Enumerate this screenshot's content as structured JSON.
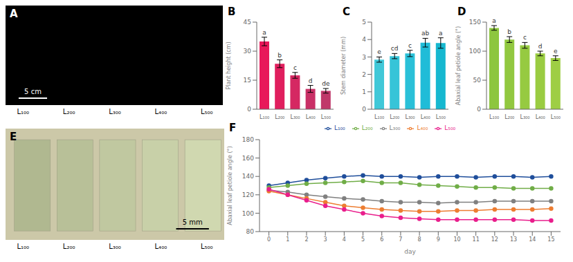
{
  "chart_data": [
    {
      "type": "image",
      "title": "A",
      "categories": [
        "L₁₀₀",
        "L₂₀₀",
        "L₃₀₀",
        "L₄₀₀",
        "L₅₀₀"
      ],
      "annotations": [
        "5 cm"
      ],
      "color": "#000000"
    },
    {
      "type": "bar",
      "title": "B",
      "categories": [
        "L₁₀₀",
        "L₂₀₀",
        "L₃₀₀",
        "L₄₀₀",
        "L₅₀₀"
      ],
      "values": [
        35.0,
        23.5,
        17.5,
        10.5,
        9.5
      ],
      "errors": [
        2.2,
        2.0,
        1.5,
        1.8,
        1.2
      ],
      "annotations": [
        "a",
        "b",
        "c",
        "d",
        "de"
      ],
      "colors": [
        "#e8185a",
        "#e01f5e",
        "#d52862",
        "#c93066",
        "#c0386a"
      ],
      "ylabel": "Plant height (cm)",
      "ylim": [
        0,
        45
      ],
      "yticks": [
        0,
        15,
        30,
        45
      ]
    },
    {
      "type": "bar",
      "title": "C",
      "categories": [
        "L₁₀₀",
        "L₂₀₀",
        "L₃₀₀",
        "L₄₀₀",
        "L₅₀₀"
      ],
      "values": [
        2.85,
        3.05,
        3.2,
        3.82,
        3.8
      ],
      "errors": [
        0.15,
        0.15,
        0.18,
        0.25,
        0.3
      ],
      "annotations": [
        "e",
        "cd",
        "c",
        "ab",
        "a"
      ],
      "colors": [
        "#40c8d8",
        "#36c4d8",
        "#2ac0d8",
        "#20bcd8",
        "#16b8d0"
      ],
      "ylabel": "Stem diameter (mm)",
      "ylim": [
        0,
        5
      ],
      "yticks": [
        0,
        1,
        2,
        3,
        4,
        5
      ]
    },
    {
      "type": "bar",
      "title": "D",
      "categories": [
        "L₁₀₀",
        "L₂₀₀",
        "L₃₀₀",
        "L₄₀₀",
        "L₅₀₀"
      ],
      "values": [
        140,
        120,
        110,
        96,
        88
      ],
      "errors": [
        4,
        5,
        5,
        4,
        4
      ],
      "annotations": [
        "a",
        "b",
        "c",
        "d",
        "e"
      ],
      "colors": [
        "#8dc63f",
        "#92c840",
        "#96ca41",
        "#9acc42",
        "#9ece44"
      ],
      "ylabel": "Abaxial leaf petiole angle (°)",
      "ylim": [
        0,
        150
      ],
      "yticks": [
        0,
        50,
        100,
        150
      ]
    },
    {
      "type": "image",
      "title": "E",
      "categories": [
        "L₁₀₀",
        "L₂₀₀",
        "L₃₀₀",
        "L₄₀₀",
        "L₅₀₀"
      ],
      "annotations": [
        "5 mm"
      ],
      "color": "#ccc8a8",
      "colors": [
        "#b0b890",
        "#b8c098",
        "#c0c8a0",
        "#c8d0a8",
        "#d0d8b0"
      ]
    },
    {
      "type": "line",
      "title": "F",
      "x": [
        0,
        1,
        2,
        3,
        4,
        5,
        6,
        7,
        8,
        9,
        10,
        11,
        12,
        13,
        14,
        15
      ],
      "series": [
        {
          "name": "L₁₀₀",
          "color": "#1f4e9b",
          "values": [
            130,
            133,
            136,
            138,
            140,
            141,
            140,
            140,
            139,
            140,
            140,
            139,
            140,
            140,
            139,
            140
          ]
        },
        {
          "name": "L₂₀₀",
          "color": "#70ad47",
          "values": [
            128,
            130,
            132,
            133,
            134,
            135,
            133,
            133,
            131,
            130,
            129,
            128,
            128,
            127,
            127,
            127
          ]
        },
        {
          "name": "L₃₀₀",
          "color": "#808080",
          "values": [
            125,
            123,
            120,
            118,
            116,
            115,
            113,
            112,
            112,
            111,
            112,
            112,
            113,
            113,
            113,
            113
          ]
        },
        {
          "name": "L₄₀₀",
          "color": "#ed7d31",
          "values": [
            124,
            120,
            116,
            112,
            108,
            106,
            104,
            103,
            102,
            102,
            103,
            103,
            104,
            104,
            104,
            105
          ]
        },
        {
          "name": "L₅₀₀",
          "color": "#e91e8c",
          "values": [
            126,
            120,
            114,
            108,
            104,
            100,
            97,
            95,
            94,
            93,
            93,
            93,
            93,
            93,
            92,
            92
          ]
        }
      ],
      "xlabel": "day",
      "ylabel": "Abaxial leaf petiole angle (°)",
      "xlim": [
        -0.5,
        15.5
      ],
      "ylim": [
        80,
        180
      ],
      "xticks": [
        0,
        1,
        2,
        3,
        4,
        5,
        6,
        7,
        8,
        9,
        10,
        11,
        12,
        13,
        14,
        15
      ],
      "yticks": [
        80,
        100,
        120,
        140,
        160,
        180
      ],
      "legend": "upper center",
      "marker": "o"
    }
  ]
}
